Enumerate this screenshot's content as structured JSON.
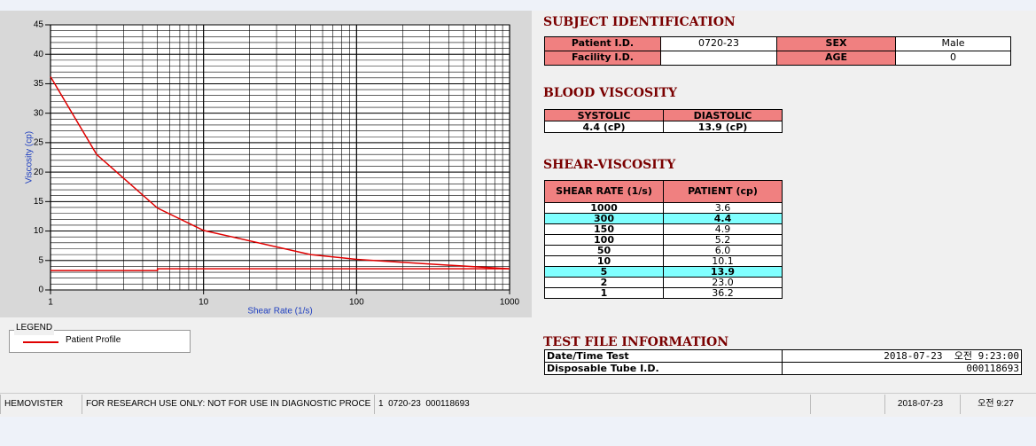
{
  "chart_data": {
    "type": "line",
    "x_label": "Shear Rate (1/s)",
    "y_label": "Viscosity (cp)",
    "xscale": "log",
    "xlim": [
      1,
      1000
    ],
    "ylim": [
      0,
      45
    ],
    "xticks": [
      1,
      10,
      100,
      1000
    ],
    "yticks": [
      0,
      5,
      10,
      15,
      20,
      25,
      30,
      35,
      40,
      45
    ],
    "grid": true,
    "legend_title": "LEGEND",
    "series": [
      {
        "name": "Patient Profile",
        "color": "#e00000",
        "x": [
          1,
          2,
          5,
          10,
          50,
          100,
          150,
          300,
          1000
        ],
        "values": [
          36.2,
          23.0,
          13.9,
          10.1,
          6.0,
          5.2,
          4.9,
          4.4,
          3.6
        ]
      },
      {
        "color": "#e00000",
        "x": [
          1,
          5,
          5,
          1000
        ],
        "values": [
          3.3,
          3.3,
          3.6,
          3.6
        ]
      }
    ]
  },
  "subject_identification": {
    "title": "SUBJECT IDENTIFICATION",
    "rows": [
      [
        "Patient I.D.",
        "0720-23",
        "SEX",
        "Male"
      ],
      [
        "Facility I.D.",
        null,
        "AGE",
        "0"
      ]
    ]
  },
  "blood_viscosity": {
    "title": "BLOOD VISCOSITY",
    "headers": [
      "SYSTOLIC",
      "DIASTOLIC"
    ],
    "values": [
      "4.4 (cP)",
      "13.9 (cP)"
    ]
  },
  "shear_viscosity": {
    "title": "SHEAR-VISCOSITY",
    "headers": [
      "SHEAR RATE (1/s)",
      "PATIENT (cp)"
    ],
    "rows": [
      {
        "rate": "1000",
        "patient": "3.6"
      },
      {
        "rate": "300",
        "patient": "4.4",
        "highlight": true
      },
      {
        "rate": "150",
        "patient": "4.9"
      },
      {
        "rate": "100",
        "patient": "5.2"
      },
      {
        "rate": "50",
        "patient": "6.0"
      },
      {
        "rate": "10",
        "patient": "10.1"
      },
      {
        "rate": "5",
        "patient": "13.9",
        "highlight": true
      },
      {
        "rate": "2",
        "patient": "23.0"
      },
      {
        "rate": "1",
        "patient": "36.2"
      }
    ]
  },
  "test_file_information": {
    "title": "TEST FILE INFORMATION",
    "rows": [
      [
        "Date/Time Test",
        "2018-07-23  오전 9:23:00"
      ],
      [
        "Disposable Tube I.D.",
        "000118693"
      ]
    ]
  },
  "status_bar": [
    "HEMOVISTER",
    "FOR RESEARCH USE ONLY: NOT FOR USE IN DIAGNOSTIC PROCEDURES",
    "1  0720-23  000118693",
    "2018-07-23",
    "오전 9:27"
  ]
}
